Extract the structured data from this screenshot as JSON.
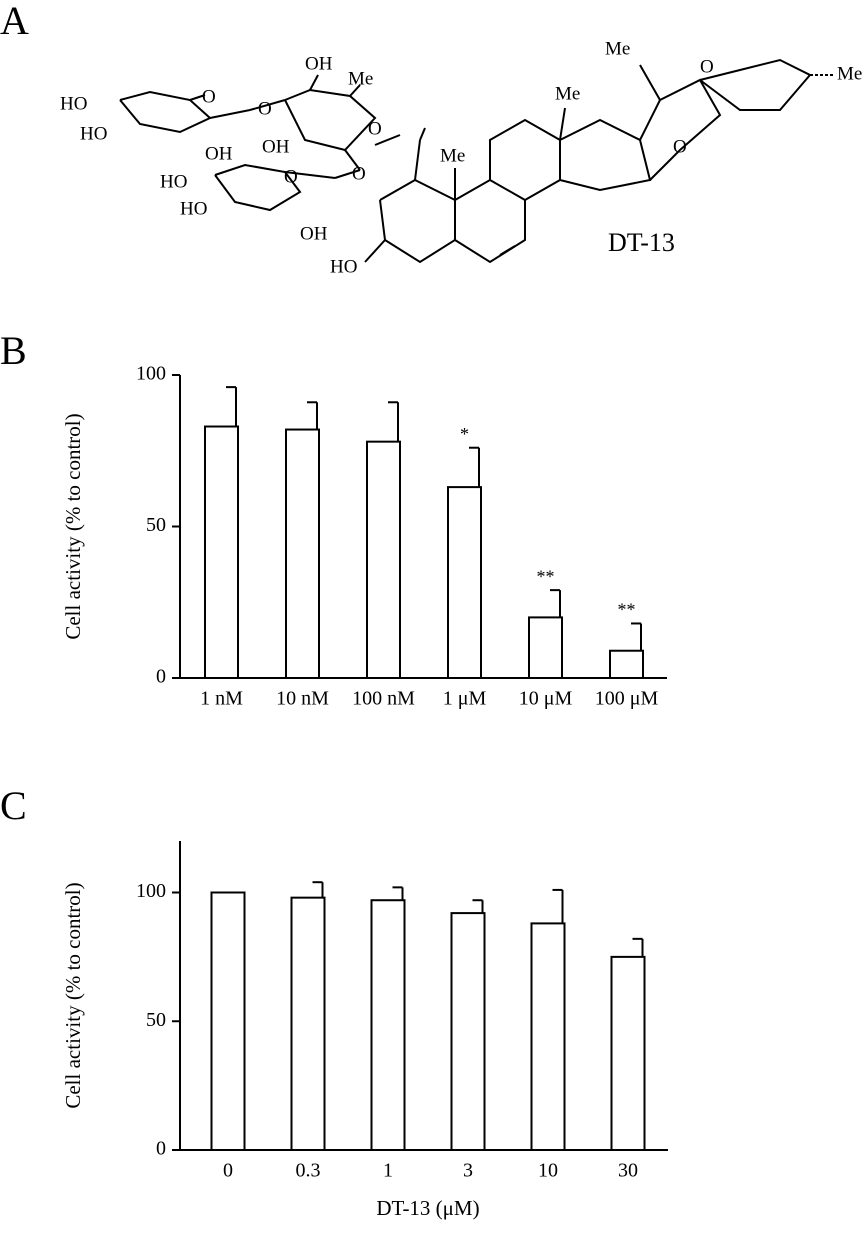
{
  "structure": {
    "panel_label": "A",
    "name": "DT-13",
    "atoms": [
      "HO",
      "HO",
      "OH",
      "OH",
      "O",
      "O",
      "OH",
      "Me",
      "O",
      "O",
      "HO",
      "HO",
      "O",
      "OH",
      "Me",
      "Me",
      "Me",
      "O",
      "Me",
      "O",
      "HO"
    ]
  },
  "chart_data": [
    {
      "type": "bar",
      "panel_label": "B",
      "y_label": "Cell activity (% to control)",
      "categories": [
        "1 nM",
        "10 nM",
        "100 nM",
        "1 μM",
        "10 μM",
        "100 μM"
      ],
      "values": [
        83,
        82,
        78,
        63,
        20,
        9
      ],
      "errors": [
        13,
        9,
        13,
        13,
        9,
        9
      ],
      "annotations": [
        {
          "text": "*",
          "category": "1 μM"
        },
        {
          "text": "**",
          "category": "10 μM"
        },
        {
          "text": "**",
          "category": "100 μM"
        }
      ],
      "color": "#ffffff",
      "ylim": [
        0,
        100
      ],
      "yticks": [
        0,
        50,
        100
      ]
    },
    {
      "type": "bar",
      "panel_label": "C",
      "y_label": "Cell activity (% to control)",
      "x_label": "DT-13  (μM)",
      "categories": [
        "0",
        "0.3",
        "1",
        "3",
        "10",
        "30"
      ],
      "values": [
        100,
        98,
        97,
        92,
        88,
        75
      ],
      "errors": [
        null,
        6,
        5,
        5,
        13,
        7
      ],
      "color": "#ffffff",
      "ylim": [
        0,
        120
      ],
      "yticks": [
        0,
        50,
        100
      ]
    }
  ]
}
